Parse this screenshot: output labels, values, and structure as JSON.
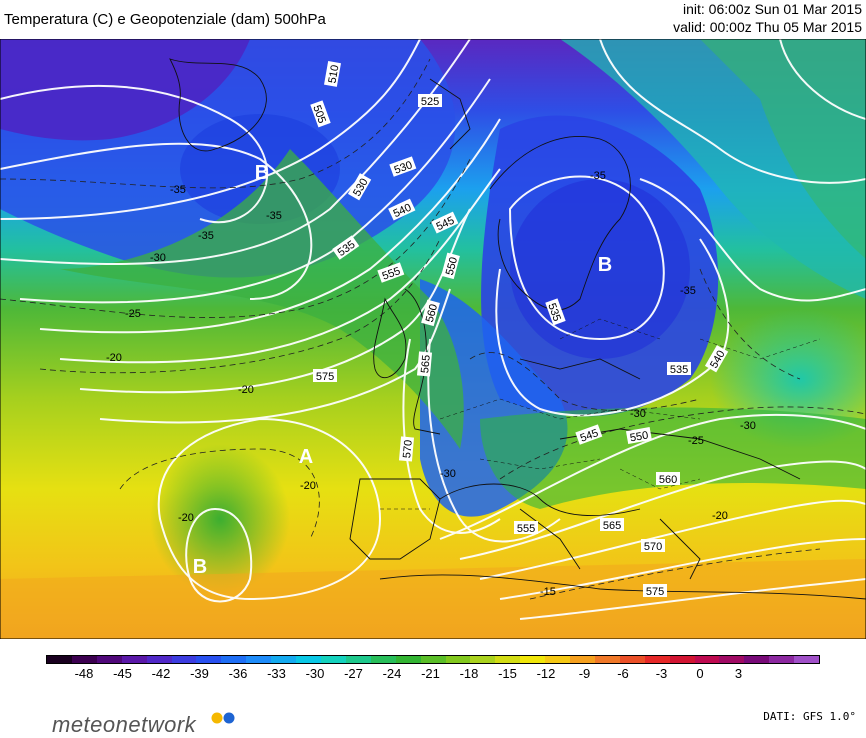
{
  "header": {
    "title": "Temperatura (C) e Geopotenziale (dam) 500hPa",
    "init": "init: 06:00z Sun 01 Mar 2015",
    "valid": "valid: 00:00z Thu 05 Mar 2015"
  },
  "map": {
    "pressure_centers": [
      {
        "label": "B",
        "kind": "low"
      },
      {
        "label": "B",
        "kind": "low"
      },
      {
        "label": "A",
        "kind": "high"
      },
      {
        "label": "B",
        "kind": "low"
      }
    ],
    "geopotential_labels": [
      "505",
      "510",
      "505",
      "525",
      "530",
      "530",
      "535",
      "540",
      "545",
      "550",
      "555",
      "560",
      "565",
      "570",
      "575",
      "535",
      "540",
      "545",
      "550",
      "555",
      "560",
      "565",
      "570",
      "575"
    ],
    "temperature_labels": [
      "-35",
      "-35",
      "-35",
      "-30",
      "-25",
      "-20",
      "-20",
      "-20",
      "-20",
      "-30",
      "-35",
      "-30",
      "-25",
      "-20",
      "-15",
      "-35",
      "-30"
    ]
  },
  "colorbar": {
    "ticks": [
      "-48",
      "-45",
      "-42",
      "-39",
      "-36",
      "-33",
      "-30",
      "-27",
      "-24",
      "-21",
      "-18",
      "-15",
      "-12",
      "-9",
      "-6",
      "-3",
      "0",
      "3"
    ],
    "colors": [
      "#1a0020",
      "#3c0050",
      "#50087a",
      "#5a18a8",
      "#5028c8",
      "#3c3ce0",
      "#2850f0",
      "#1e6ef5",
      "#1e8cfa",
      "#14aaf0",
      "#0ac8e6",
      "#14d2be",
      "#1ec88c",
      "#28be5a",
      "#32b432",
      "#5abe28",
      "#82c81e",
      "#aad21e",
      "#d2dc14",
      "#f0e60a",
      "#f5c814",
      "#f5a01e",
      "#f07828",
      "#eb5028",
      "#e62828",
      "#d21432",
      "#be0a50",
      "#a00a64",
      "#780a78",
      "#8c28a0",
      "#a050c8"
    ]
  },
  "footer": {
    "logo": "meteonetwork",
    "source": "DATI: GFS 1.0°"
  },
  "colors": {
    "cold": "#3c3ce0",
    "mild": "#d2dc14",
    "warm": "#f5a01e"
  }
}
